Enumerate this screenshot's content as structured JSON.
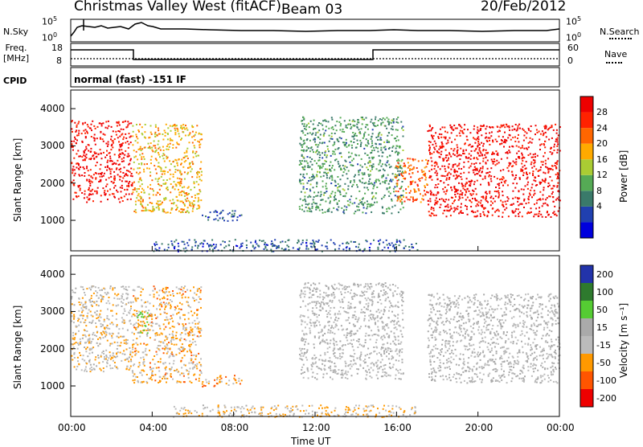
{
  "header": {
    "title": "Christmas Valley West (fitACF)",
    "beam": "Beam 03",
    "date": "20/Feb/2012"
  },
  "panels": {
    "nsky_label": "N.Sky",
    "nsearch_label": "N.Search",
    "nsky_ticks": [
      "10^5",
      "10^0"
    ],
    "nsearch_ticks": [
      "10^5",
      "10^0"
    ],
    "freq_label": "Freq.",
    "freq_unit": "[MHz]",
    "freq_ticks": [
      "18",
      "8"
    ],
    "nave_label": "Nave",
    "nave_ticks": [
      "60",
      "0"
    ],
    "cpid_label": "CPID",
    "cpid_text": "normal (fast) -151 IF"
  },
  "axes": {
    "ylabel": "Slant Range [km]",
    "xlabel": "Time UT",
    "x_ticks": [
      "00:00",
      "04:00",
      "08:00",
      "12:00",
      "16:00",
      "20:00",
      "00:00"
    ],
    "y_ticks": [
      "4000",
      "3000",
      "2000",
      "1000"
    ],
    "power_label": "Power [dB]",
    "power_ticks": [
      "28",
      "24",
      "20",
      "16",
      "12",
      "8",
      "4"
    ],
    "velocity_label": "Velocity [m s⁻¹]",
    "velocity_ticks": [
      "200",
      "100",
      "50",
      "15",
      "-15",
      "-50",
      "-100",
      "-200"
    ]
  },
  "colors": {
    "power_scale": [
      "#0000dd",
      "#2040b0",
      "#3a7a6a",
      "#55aa55",
      "#aacc33",
      "#ffaa00",
      "#ff6600",
      "#ff2200",
      "#ee0000"
    ],
    "velocity_scale": [
      "#2233aa",
      "#2e7a2e",
      "#55cc33",
      "#aaaaaa",
      "#bbbbbb",
      "#ff9900",
      "#ff5500",
      "#ee0000"
    ]
  },
  "chart_data": [
    {
      "type": "heatmap",
      "title": "Power",
      "xlabel": "Time UT",
      "ylabel": "Slant Range [km]",
      "x_range": [
        "00:00",
        "24:00"
      ],
      "ylim": [
        180,
        4500
      ],
      "colorbar_label": "Power [dB]",
      "colorbar_range": [
        0,
        30
      ],
      "regions": [
        {
          "x": [
            0.0,
            3.0
          ],
          "y": [
            1500,
            3700
          ],
          "value": 28
        },
        {
          "x": [
            3.0,
            6.4
          ],
          "y": [
            1200,
            3600
          ],
          "value": 18
        },
        {
          "x": [
            6.4,
            8.4
          ],
          "y": [
            1000,
            1300
          ],
          "value": 6
        },
        {
          "x": [
            11.2,
            16.3
          ],
          "y": [
            1200,
            3800
          ],
          "value": 10
        },
        {
          "x": [
            15.9,
            17.5
          ],
          "y": [
            1500,
            2700
          ],
          "value": 22
        },
        {
          "x": [
            17.5,
            24.0
          ],
          "y": [
            1100,
            3600
          ],
          "value": 28
        },
        {
          "x": [
            4.0,
            17.0
          ],
          "y": [
            180,
            500
          ],
          "value": 6
        }
      ]
    },
    {
      "type": "heatmap",
      "title": "Velocity",
      "xlabel": "Time UT",
      "ylabel": "Slant Range [km]",
      "x_range": [
        "00:00",
        "24:00"
      ],
      "ylim": [
        180,
        4500
      ],
      "colorbar_label": "Velocity [m s⁻¹]",
      "colorbar_range": [
        -200,
        200
      ],
      "regions": [
        {
          "x": [
            0.0,
            3.0
          ],
          "y": [
            1400,
            3700
          ],
          "value": -30
        },
        {
          "x": [
            3.0,
            6.4
          ],
          "y": [
            1100,
            3700
          ],
          "value": -60
        },
        {
          "x": [
            3.2,
            3.8
          ],
          "y": [
            2400,
            3000
          ],
          "value": 50
        },
        {
          "x": [
            6.4,
            8.4
          ],
          "y": [
            1000,
            1300
          ],
          "value": -80
        },
        {
          "x": [
            11.2,
            16.3
          ],
          "y": [
            1200,
            3800
          ],
          "value": 0
        },
        {
          "x": [
            17.5,
            24.0
          ],
          "y": [
            1100,
            3500
          ],
          "value": 0
        },
        {
          "x": [
            5.0,
            17.0
          ],
          "y": [
            180,
            500
          ],
          "value": -40
        }
      ]
    }
  ]
}
